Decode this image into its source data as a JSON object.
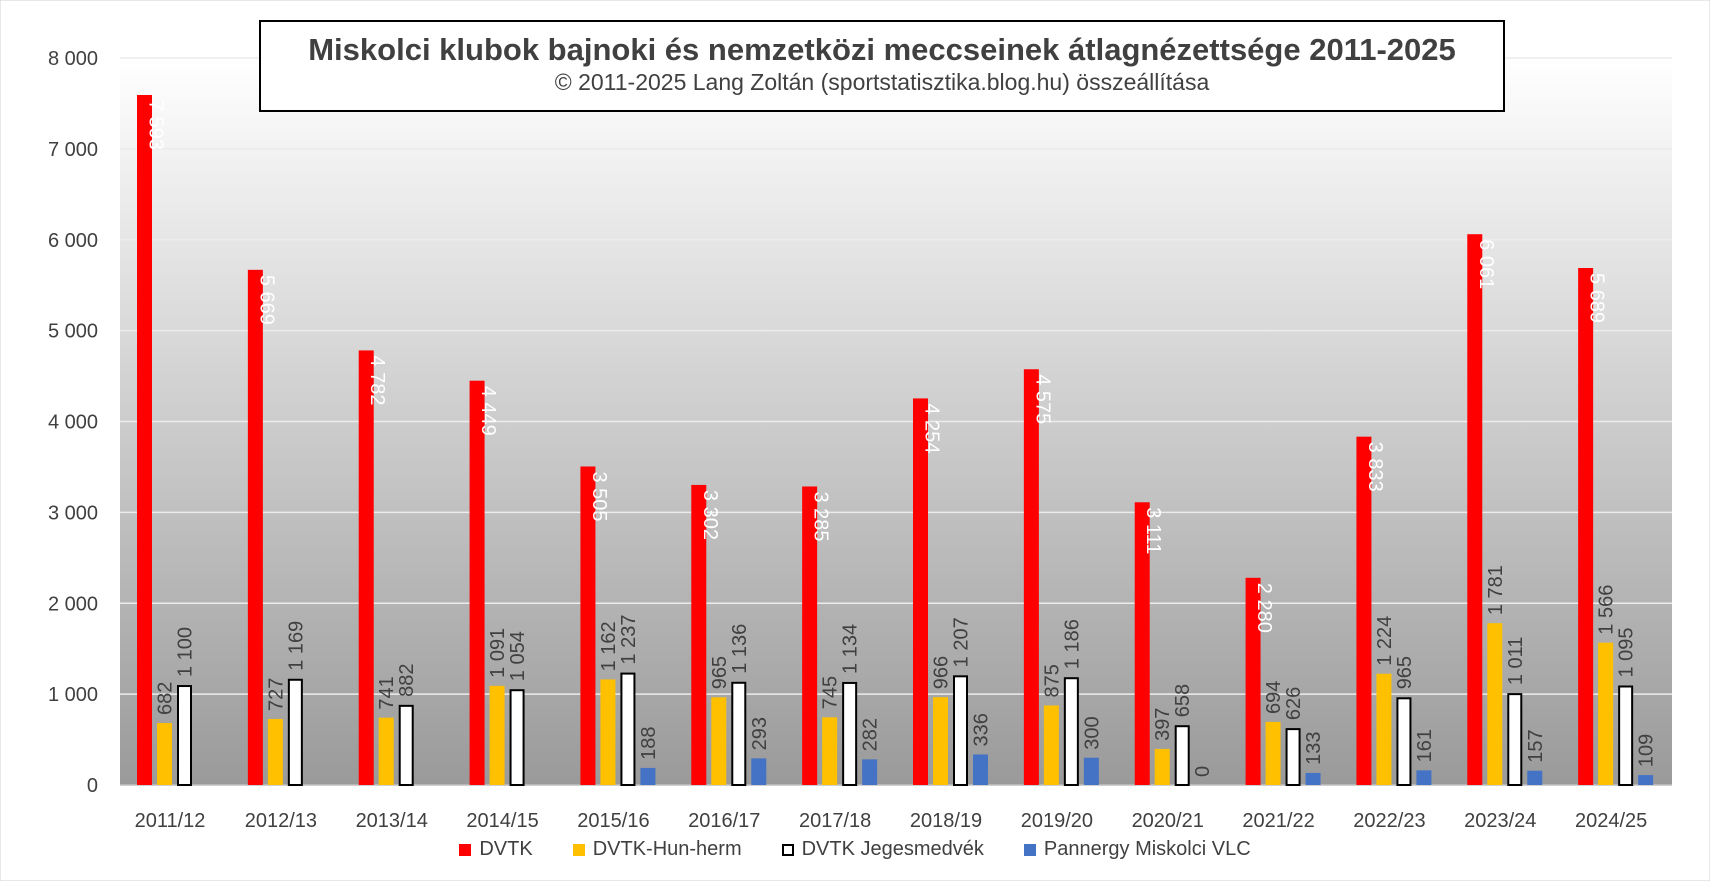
{
  "chart_data": {
    "type": "bar",
    "title": "Miskolci klubok bajnoki és nemzetközi meccseinek átlagnézettsége 2011-2025",
    "subtitle": "© 2011-2025 Lang Zoltán (sportstatisztika.blog.hu) összeállítása",
    "xlabel": "",
    "ylabel": "",
    "ylim": [
      0,
      8000
    ],
    "yticks": [
      0,
      1000,
      2000,
      3000,
      4000,
      5000,
      6000,
      7000,
      8000
    ],
    "ytick_labels": [
      "0",
      "1 000",
      "2 000",
      "3 000",
      "4 000",
      "5 000",
      "6 000",
      "7 000",
      "8 000"
    ],
    "grid": true,
    "legend_position": "bottom",
    "categories": [
      "2011/12",
      "2012/13",
      "2013/14",
      "2014/15",
      "2015/16",
      "2016/17",
      "2017/18",
      "2018/19",
      "2019/20",
      "2020/21",
      "2021/22",
      "2022/23",
      "2023/24",
      "2024/25"
    ],
    "series": [
      {
        "name": "DVTK",
        "color": "#ff0000",
        "values": [
          7593,
          5669,
          4782,
          4449,
          3505,
          3302,
          3285,
          4254,
          4575,
          3111,
          2280,
          3833,
          6061,
          5689
        ],
        "labels": [
          "7 593",
          "5 669",
          "4 782",
          "4 449",
          "3 505",
          "3 302",
          "3 285",
          "4 254",
          "4 575",
          "3 111",
          "2 280",
          "3 833",
          "6 061",
          "5 689"
        ]
      },
      {
        "name": "DVTK-Hun-herm",
        "color": "#ffc000",
        "values": [
          682,
          727,
          741,
          1091,
          1162,
          965,
          745,
          966,
          875,
          397,
          694,
          1224,
          1781,
          1566
        ],
        "labels": [
          "682",
          "727",
          "741",
          "1 091",
          "1 162",
          "965",
          "745",
          "966",
          "875",
          "397",
          "694",
          "1 224",
          "1 781",
          "1 566"
        ]
      },
      {
        "name": "DVTK Jegesmedvék",
        "color": "#ffffff",
        "values": [
          1100,
          1169,
          882,
          1054,
          1237,
          1136,
          1134,
          1207,
          1186,
          658,
          626,
          965,
          1011,
          1095
        ],
        "labels": [
          "1 100",
          "1 169",
          "882",
          "1 054",
          "1 237",
          "1 136",
          "1 134",
          "1 207",
          "1 186",
          "658",
          "626",
          "965",
          "1 011",
          "1 095"
        ]
      },
      {
        "name": "Pannergy Miskolci VLC",
        "color": "#4472c4",
        "values": [
          null,
          null,
          null,
          null,
          188,
          293,
          282,
          336,
          300,
          0,
          133,
          161,
          157,
          109
        ],
        "labels": [
          null,
          null,
          null,
          null,
          "188",
          "293",
          "282",
          "336",
          "300",
          "0",
          "133",
          "161",
          "157",
          "109"
        ]
      }
    ]
  }
}
